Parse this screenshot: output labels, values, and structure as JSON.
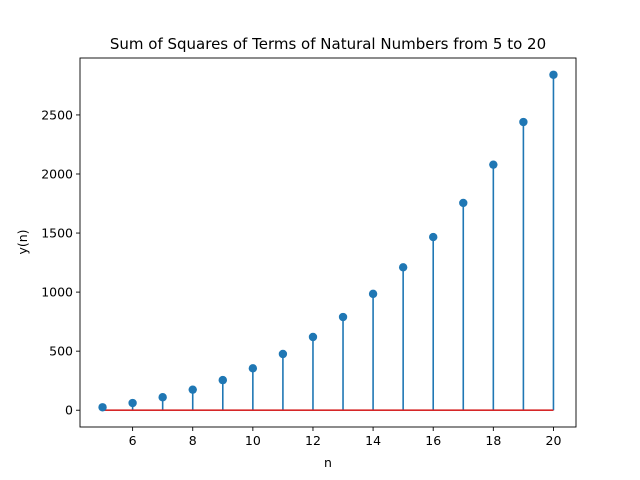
{
  "chart_data": {
    "type": "stem",
    "title": "Sum of Squares of Terms of Natural Numbers from 5 to 20",
    "xlabel": "n",
    "ylabel": "y(n)",
    "x": [
      5,
      6,
      7,
      8,
      9,
      10,
      11,
      12,
      13,
      14,
      15,
      16,
      17,
      18,
      19,
      20
    ],
    "values": [
      25,
      61,
      110,
      174,
      255,
      355,
      476,
      620,
      789,
      985,
      1210,
      1466,
      1755,
      2079,
      2440,
      2840
    ],
    "baseline": 0,
    "xlim": [
      4.25,
      20.75
    ],
    "ylim": [
      -142,
      2982
    ],
    "xticks": [
      6,
      8,
      10,
      12,
      14,
      16,
      18,
      20
    ],
    "yticks": [
      0,
      500,
      1000,
      1500,
      2000,
      2500
    ],
    "grid": false,
    "colors": {
      "stem": "#1f77b4",
      "marker": "#1f77b4",
      "baseline": "#d62728"
    }
  }
}
